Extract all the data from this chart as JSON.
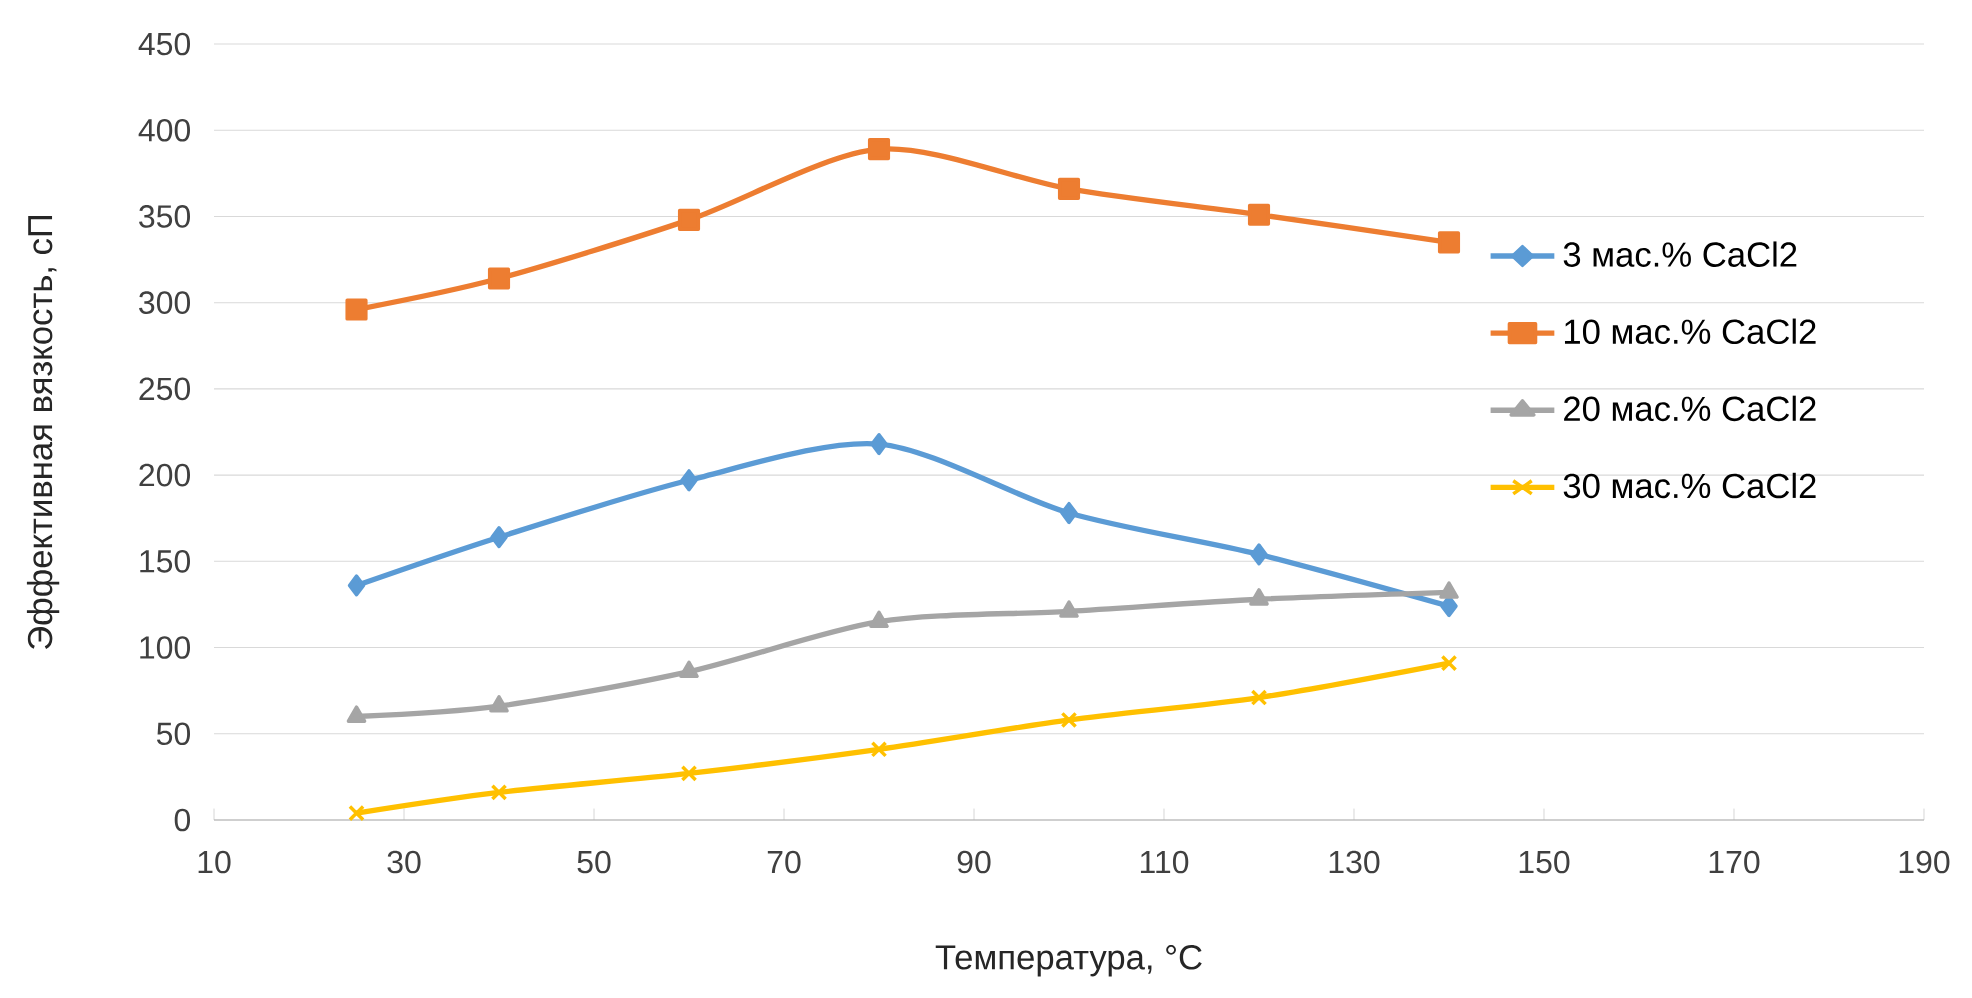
{
  "chart_data": {
    "type": "line",
    "xlabel": "Температура, °C",
    "ylabel": "Эффективная вязкость, сП",
    "x": [
      25,
      40,
      60,
      80,
      100,
      120,
      140
    ],
    "series": [
      {
        "name": "3 мас.% CaCl2",
        "color": "#5b9bd5",
        "marker": "diamond",
        "values": [
          136,
          164,
          197,
          218,
          178,
          154,
          124
        ]
      },
      {
        "name": "10 мас.% CaCl2",
        "color": "#ed7d31",
        "marker": "square",
        "values": [
          296,
          314,
          348,
          389,
          366,
          351,
          335
        ]
      },
      {
        "name": "20 мас.% CaCl2",
        "color": "#a5a5a5",
        "marker": "triangle",
        "values": [
          60,
          66,
          86,
          115,
          121,
          128,
          132
        ]
      },
      {
        "name": "30 мас.% CaCl2",
        "color": "#ffc000",
        "marker": "cross",
        "values": [
          4,
          16,
          27,
          41,
          58,
          71,
          91
        ]
      }
    ],
    "xlim": [
      10,
      190
    ],
    "xticks": [
      10,
      30,
      50,
      70,
      90,
      110,
      130,
      150,
      170,
      190
    ],
    "ylim": [
      0,
      450
    ],
    "yticks": [
      0,
      50,
      100,
      150,
      200,
      250,
      300,
      350,
      400,
      450
    ],
    "grid": "y",
    "legend": "right",
    "line_style": "solid"
  }
}
